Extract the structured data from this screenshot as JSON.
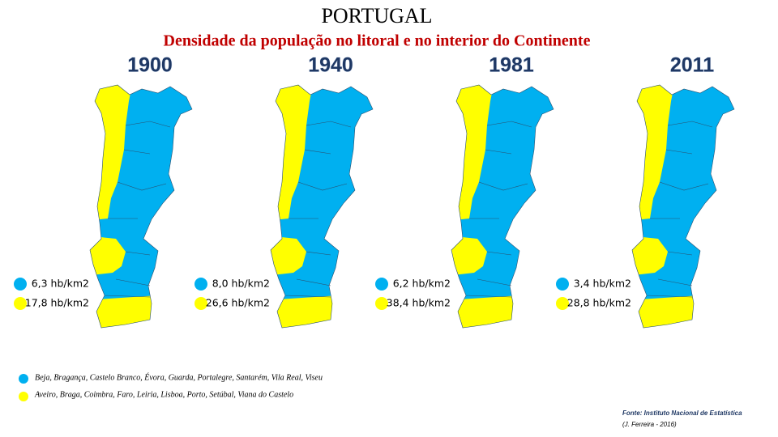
{
  "title": "PORTUGAL",
  "subtitle": "Densidade da população no litoral e no interior do Continente",
  "maps": [
    {
      "year": "1900",
      "interior": "6,3 hb/km2",
      "litoral": "17,8 hb/km2"
    },
    {
      "year": "1940",
      "interior": "8,0 hb/km2",
      "litoral": "26,6 hb/km2"
    },
    {
      "year": "1981",
      "interior": "6,2 hb/km2",
      "litoral": "38,4 hb/km2"
    },
    {
      "year": "2011",
      "interior": "3,4 hb/km2",
      "litoral": "28,8 hb/km2"
    }
  ],
  "legend": {
    "interior": "Beja, Bragança, Castelo Branco, Évora, Guarda, Portalegre, Santarém, Vila Real, Viseu",
    "litoral": "Aveiro, Braga, Coimbra, Faro, Leiria, Lisboa, Porto, Setúbal, Viana do Castelo"
  },
  "source": "Fonte: Instituto Nacional de Estatística",
  "credit": "(J. Ferreira - 2016)"
}
